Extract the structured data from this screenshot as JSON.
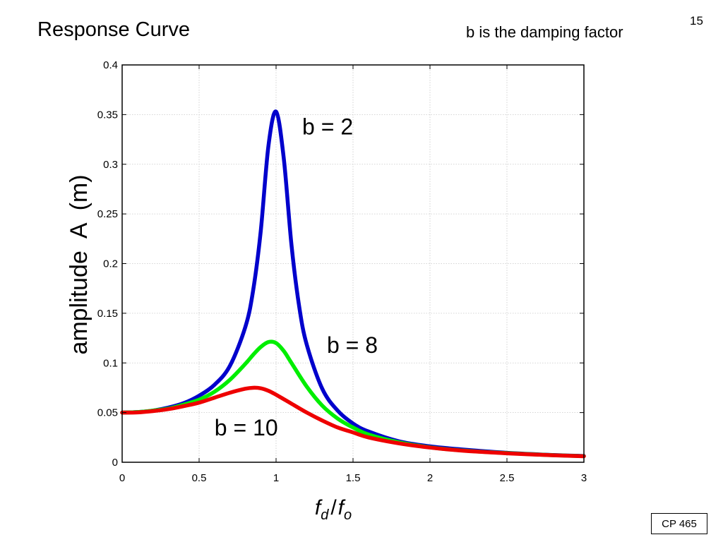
{
  "slide": {
    "title": "Response Curve",
    "subtitle": "b is the damping factor",
    "page_number": "15",
    "footer": "CP 465"
  },
  "chart_data": {
    "type": "line",
    "title": "",
    "xlabel": "f_d / f_o",
    "xlabel_parts": {
      "main1": "f",
      "sub1": "d",
      "sep": "/",
      "main2": "f",
      "sub2": "o"
    },
    "ylabel": "amplitude  A  (m)",
    "xlim": [
      0,
      3
    ],
    "ylim": [
      0,
      0.4
    ],
    "xticks": [
      0,
      0.5,
      1,
      1.5,
      2,
      2.5,
      3
    ],
    "xtick_labels": [
      "0",
      "0.5",
      "1",
      "1.5",
      "2",
      "2.5",
      "3"
    ],
    "yticks": [
      0,
      0.05,
      0.1,
      0.15,
      0.2,
      0.25,
      0.3,
      0.35,
      0.4
    ],
    "ytick_labels": [
      "0",
      "0.05",
      "0.1",
      "0.15",
      "0.2",
      "0.25",
      "0.3",
      "0.35",
      "0.4"
    ],
    "grid": true,
    "series": [
      {
        "label": "b = 2",
        "color": "#0000cc",
        "x": [
          0,
          0.1,
          0.2,
          0.3,
          0.4,
          0.5,
          0.6,
          0.7,
          0.8,
          0.85,
          0.9,
          0.95,
          1.0,
          1.05,
          1.1,
          1.15,
          1.2,
          1.3,
          1.4,
          1.5,
          1.6,
          1.8,
          2.0,
          2.2,
          2.5,
          2.8,
          3.0
        ],
        "y": [
          0.05,
          0.0505,
          0.052,
          0.055,
          0.0595,
          0.067,
          0.078,
          0.097,
          0.136,
          0.172,
          0.232,
          0.318,
          0.353,
          0.306,
          0.219,
          0.157,
          0.118,
          0.074,
          0.052,
          0.039,
          0.031,
          0.021,
          0.016,
          0.013,
          0.0095,
          0.0073,
          0.0063
        ]
      },
      {
        "label": "b = 8",
        "color": "#00ee00",
        "x": [
          0,
          0.1,
          0.2,
          0.3,
          0.4,
          0.5,
          0.6,
          0.7,
          0.8,
          0.85,
          0.9,
          0.95,
          1.0,
          1.05,
          1.1,
          1.2,
          1.3,
          1.4,
          1.5,
          1.6,
          1.8,
          2.0,
          2.2,
          2.5,
          2.8,
          3.0
        ],
        "y": [
          0.05,
          0.0505,
          0.052,
          0.054,
          0.058,
          0.063,
          0.071,
          0.083,
          0.099,
          0.108,
          0.116,
          0.121,
          0.12,
          0.112,
          0.1,
          0.076,
          0.057,
          0.044,
          0.035,
          0.028,
          0.02,
          0.015,
          0.012,
          0.0092,
          0.0071,
          0.0061
        ]
      },
      {
        "label": "b = 10",
        "color": "#ee0000",
        "x": [
          0,
          0.1,
          0.2,
          0.3,
          0.4,
          0.5,
          0.6,
          0.7,
          0.8,
          0.85,
          0.9,
          0.95,
          1.0,
          1.1,
          1.2,
          1.3,
          1.4,
          1.5,
          1.6,
          1.8,
          2.0,
          2.2,
          2.5,
          2.8,
          3.0
        ],
        "y": [
          0.05,
          0.0502,
          0.0515,
          0.0535,
          0.0565,
          0.06,
          0.065,
          0.07,
          0.074,
          0.075,
          0.0745,
          0.072,
          0.068,
          0.059,
          0.05,
          0.042,
          0.035,
          0.03,
          0.025,
          0.019,
          0.0148,
          0.0118,
          0.009,
          0.007,
          0.006
        ]
      }
    ],
    "annotations": [
      {
        "text": "b = 2",
        "color": "#000000",
        "at": [
          1.17,
          0.33
        ]
      },
      {
        "text": "b = 8",
        "color": "#000000",
        "at": [
          1.33,
          0.11
        ]
      },
      {
        "text": "b = 10",
        "color": "#000000",
        "at": [
          0.6,
          0.027
        ]
      }
    ]
  }
}
